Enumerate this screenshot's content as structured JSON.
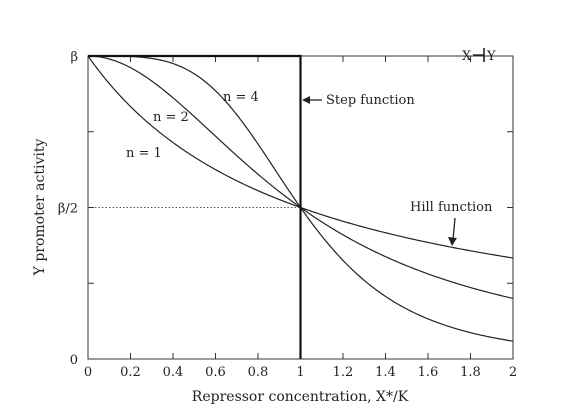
{
  "chart_data": {
    "type": "line",
    "xlabel": "Repressor concentration, X*/K",
    "ylabel": "Y promoter activity",
    "xlim": [
      0,
      2
    ],
    "ylim": [
      0,
      1
    ],
    "x_ticks": [
      "0",
      "0.2",
      "0.4",
      "0.6",
      "0.8",
      "1",
      "1.2",
      "1.4",
      "1.6",
      "1.8",
      "2"
    ],
    "y_ticks": [
      {
        "value": 0,
        "label": "0"
      },
      {
        "value": 0.5,
        "label": "β/2"
      },
      {
        "value": 1,
        "label": "β"
      }
    ],
    "grid": false,
    "reference_line": {
      "y": 0.5,
      "x_end": 1,
      "style": "dotted"
    },
    "series": [
      {
        "name": "n = 1",
        "n": 1
      },
      {
        "name": "n = 2",
        "n": 2
      },
      {
        "name": "n = 4",
        "n": 4
      }
    ],
    "step": {
      "name": "Step function",
      "threshold": 1,
      "high": 1,
      "low": 0
    },
    "annotations": {
      "step_function": "Step function",
      "hill_function": "Hill function",
      "series_labels": [
        "n = 4",
        "n = 2",
        "n = 1"
      ],
      "inset_left": "X",
      "inset_right": "Y"
    },
    "colors": {
      "line": "#222222",
      "axis": "#333333",
      "reference": "#555555"
    }
  }
}
